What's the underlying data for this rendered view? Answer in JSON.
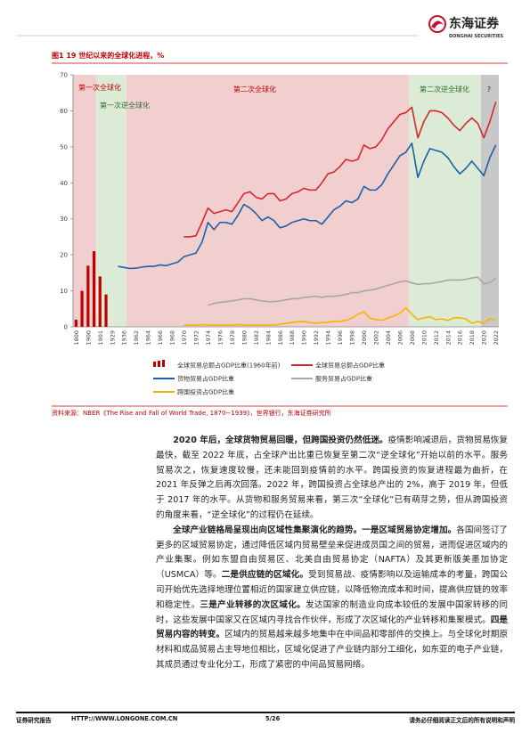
{
  "header": {
    "logo_cn": "东海证券",
    "logo_en": "DONGHAI SECURITIES"
  },
  "chart_data": {
    "type": "line",
    "title": "图1  19 世纪以来的全球化进程，%",
    "source": "资料来源：NBER《The Rise and Fall of World Trade, 1870−1939》，世界银行，东海证券研究所",
    "annotations": [
      "第一次全球化",
      "第一次逆全球化",
      "第二次全球化",
      "第二次逆全球化",
      "?"
    ],
    "categories": [
      "1800",
      null,
      "1900",
      null,
      "1901",
      null,
      "1929",
      null,
      "1936",
      null,
      "1962",
      null,
      "1964",
      null,
      "1966",
      null,
      "1968",
      null,
      "1970",
      null,
      "1972",
      null,
      "1974",
      null,
      "1976",
      null,
      "1978",
      null,
      "1980",
      null,
      "1982",
      null,
      "1984",
      null,
      "1986",
      null,
      "1988",
      null,
      "1990",
      null,
      "1992",
      null,
      "1994",
      null,
      "1996",
      null,
      "1998",
      null,
      "2000",
      null,
      "2002",
      null,
      "2004",
      null,
      "2006",
      null,
      "2008",
      null,
      "2010",
      null,
      "2012",
      null,
      "2014",
      null,
      "2016",
      null,
      "2018",
      null,
      "2020",
      null,
      "2022"
    ],
    "ylim": [
      0,
      70
    ],
    "yticks": [
      0,
      10,
      20,
      30,
      40,
      50,
      60,
      70
    ],
    "series": [
      {
        "name": "全球贸易总额占GDP比重(1960年前)",
        "type": "bar",
        "color": "#c00000",
        "values": [
          2,
          10,
          17,
          21,
          14,
          9,
          null,
          null,
          null,
          null,
          null,
          null,
          null,
          null,
          null,
          null,
          null,
          null,
          null,
          null,
          null,
          null,
          null,
          null,
          null,
          null,
          null,
          null,
          null,
          null,
          null,
          null,
          null,
          null,
          null,
          null,
          null,
          null,
          null,
          null,
          null,
          null,
          null,
          null,
          null,
          null,
          null,
          null,
          null,
          null,
          null,
          null,
          null,
          null,
          null,
          null,
          null,
          null,
          null,
          null,
          null,
          null,
          null,
          null,
          null,
          null,
          null,
          null,
          null,
          null,
          null
        ]
      },
      {
        "name": "全球贸易总额占GDP比重",
        "type": "line",
        "color": "#d7262b",
        "values": [
          null,
          null,
          null,
          null,
          null,
          null,
          null,
          null,
          null,
          null,
          null,
          null,
          null,
          null,
          null,
          null,
          null,
          null,
          25,
          25,
          25.3,
          29,
          33,
          31.5,
          32,
          32.5,
          32,
          34.5,
          37,
          37.5,
          36,
          35.5,
          37,
          37,
          35,
          35.5,
          37,
          37.5,
          38.5,
          38,
          38,
          40,
          42.5,
          43,
          44.5,
          46.5,
          46,
          46.5,
          50.5,
          49.5,
          50,
          52,
          55,
          57,
          59,
          59.5,
          61,
          52.5,
          57,
          60,
          60,
          59.5,
          58,
          56,
          54.5,
          56.5,
          58,
          56.5,
          52.5,
          57,
          62.5
        ]
      },
      {
        "name": "货物贸易占GDP比重",
        "type": "line",
        "color": "#1f5fa8",
        "values": [
          null,
          null,
          null,
          null,
          null,
          null,
          null,
          16.8,
          16.5,
          16.2,
          16.3,
          16.6,
          16.8,
          16.8,
          17.2,
          17,
          17.5,
          18,
          19.5,
          20,
          20.5,
          23.5,
          29,
          27,
          29,
          29,
          28.5,
          31,
          34,
          33,
          31.5,
          29.5,
          30.5,
          29.5,
          27.5,
          28,
          29,
          29.5,
          30,
          29.5,
          29.5,
          28.5,
          30.5,
          32.5,
          33.5,
          35,
          34.5,
          35.5,
          39,
          38,
          38,
          39.5,
          42.5,
          45,
          47.5,
          48.5,
          51,
          41.5,
          46,
          49.5,
          49,
          48.5,
          47,
          44.5,
          42.5,
          44,
          46,
          44,
          42,
          47,
          50.5
        ]
      },
      {
        "name": "服务贸易占GDP比重",
        "type": "line",
        "color": "#a6a6a6",
        "values": [
          null,
          null,
          null,
          null,
          null,
          null,
          null,
          null,
          null,
          null,
          null,
          null,
          null,
          null,
          null,
          null,
          null,
          null,
          null,
          null,
          null,
          null,
          6,
          6.5,
          6.8,
          7,
          7.2,
          7.5,
          7.8,
          7.8,
          7.5,
          7.2,
          7,
          7,
          7.2,
          7.5,
          7.8,
          7.8,
          8.2,
          8.3,
          8.5,
          8.2,
          8.5,
          8.5,
          8.7,
          9,
          9.5,
          9.5,
          10,
          10.2,
          10.5,
          11,
          11.5,
          12,
          12.5,
          12.8,
          12.2,
          11.8,
          12,
          12,
          12.3,
          12.6,
          13,
          13,
          13,
          13.2,
          13.6,
          13.8,
          12,
          12.3,
          13.5
        ]
      },
      {
        "name": "跨国投资占GDP比重",
        "type": "line",
        "color": "#f5b400",
        "values": [
          null,
          null,
          null,
          null,
          null,
          null,
          null,
          null,
          null,
          null,
          null,
          null,
          null,
          null,
          null,
          null,
          null,
          null,
          0.5,
          0.5,
          0.5,
          0.6,
          0.5,
          0.5,
          0.5,
          0.5,
          0.5,
          0.6,
          0.5,
          0.5,
          0.5,
          0.5,
          0.5,
          0.5,
          0.7,
          1,
          1.2,
          1.4,
          1.5,
          1.2,
          1,
          1.2,
          1.3,
          1.5,
          1.5,
          1.8,
          2.4,
          3.5,
          4.2,
          2.5,
          2,
          1.8,
          2.5,
          3,
          3.8,
          5.3,
          3.5,
          2,
          2.5,
          2.8,
          2,
          2.2,
          1.8,
          2.5,
          2.5,
          2.2,
          1,
          1.5,
          1,
          2.3,
          1.8
        ]
      }
    ]
  },
  "body": {
    "paragraphs": [
      {
        "runs": [
          {
            "text": "2020 年后，全球货物贸易回暖，但跨国投资仍然低迷。",
            "bold": true
          },
          {
            "text": "疫情影响减退后，货物贸易恢复最快，截至 2022 年底，占全球产出比重已恢复至第二次“逆全球化”开始以前的水平。服务贸易次之，恢复速度较慢，还未能回到疫情前的水平。跨国投资的恢复进程最为曲折，在 2021 年反弹之后再次回落。2022 年，跨国投资占全球总产出的 2%，高于 2019 年，但低于 2017 年的水平。从货物和服务贸易来看，第三次“全球化”已有萌芽之势，但从跨国投资的角度来看，“逆全球化”的过程仍在延续。",
            "bold": false
          }
        ]
      },
      {
        "runs": [
          {
            "text": "全球产业链格局呈现出向区域性集聚演化的趋势。一是区域贸易协定增加。",
            "bold": true
          },
          {
            "text": "各国间签订了更多的区域贸易协定，通过降低区域内贸易壁垒来促进成员国之间的贸易，进而促进区域内的产业集聚。例如东盟自由贸易区、北美自由贸易协定（NAFTA）及其更新版美墨加协定（USMCA）等。",
            "bold": false
          },
          {
            "text": "二是供应链的区域化。",
            "bold": true
          },
          {
            "text": "受到贸易战、疫情影响以及运输成本的考量，跨国公司开始优先选择地理位置相近的国家建立供应链，以降低物流成本和时间，提高供应链的效率和稳定性。",
            "bold": false
          },
          {
            "text": "三是产业转移的次区域化。",
            "bold": true
          },
          {
            "text": "发达国家的制造业向成本较低的发展中国家转移的同时，这些发展中国家又在区域内寻找合作伙伴，形成了次区域化的产业转移和集聚模式。",
            "bold": false
          },
          {
            "text": "四是贸易内容的转变。",
            "bold": true
          },
          {
            "text": "区域内的贸易越来越多地集中在中间品和零部件的交换上。与全球化时期原材料和成品贸易占主导地位相比，区域化促进了产业链内部分工细化，如东亚的电子产业链，其成员通过专业化分工，形成了紧密的中间品贸易网络。",
            "bold": false
          }
        ]
      }
    ]
  },
  "footer": {
    "left": "证券研究报告",
    "url": "HTTP://WWW.LONGONE.COM.CN",
    "page": "5/26",
    "right": "请务必仔细阅读正文后的所有说明和声明"
  }
}
